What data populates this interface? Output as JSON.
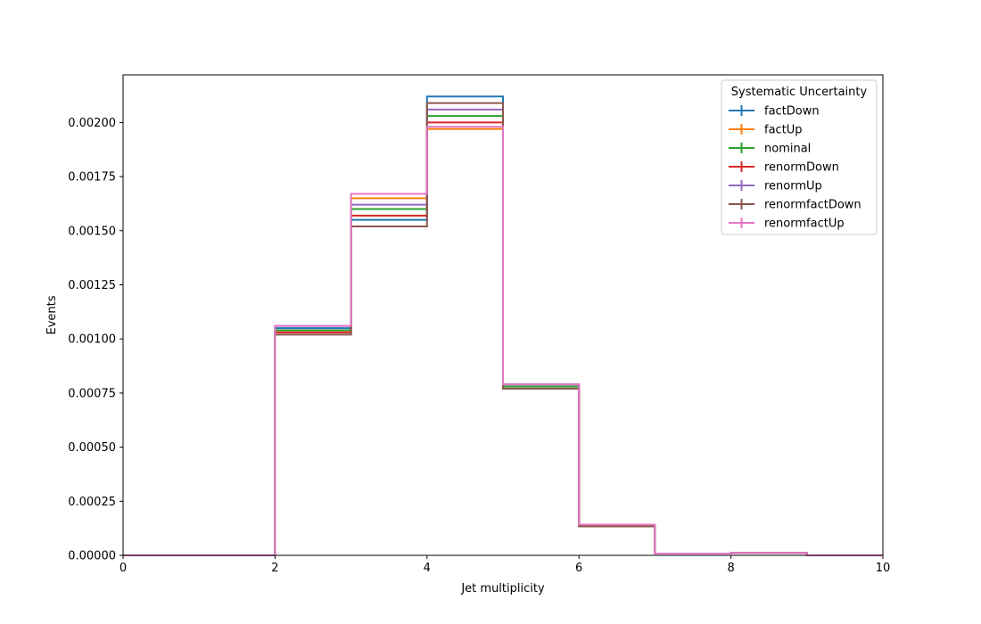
{
  "chart_data": {
    "type": "line",
    "subtype": "step-histogram",
    "xlabel": "Jet multiplicity",
    "ylabel": "Events",
    "xlim": [
      0,
      10
    ],
    "ylim": [
      0,
      0.00222
    ],
    "x_ticks": [
      0,
      2,
      4,
      6,
      8,
      10
    ],
    "y_ticks": [
      0,
      0.00025,
      0.0005,
      0.00075,
      0.001,
      0.00125,
      0.0015,
      0.00175,
      0.002
    ],
    "x_tick_labels": [
      "0",
      "2",
      "4",
      "6",
      "8",
      "10"
    ],
    "y_tick_labels": [
      "0.00000",
      "0.00025",
      "0.00050",
      "0.00075",
      "0.00100",
      "0.00125",
      "0.00150",
      "0.00175",
      "0.00200"
    ],
    "bin_edges": [
      0,
      1,
      2,
      3,
      4,
      5,
      6,
      7,
      8,
      9,
      10
    ],
    "legend": {
      "title": "Systematic Uncertainty",
      "placement": "top-right"
    },
    "series": [
      {
        "name": "factDown",
        "color": "#1f77b4",
        "values": [
          0,
          0,
          0.00105,
          0.00155,
          0.00212,
          0.00079,
          0.000138,
          8e-06,
          1.2e-05,
          0
        ]
      },
      {
        "name": "factUp",
        "color": "#ff7f0e",
        "values": [
          0,
          0,
          0.00103,
          0.00165,
          0.00197,
          0.00077,
          0.000135,
          8e-06,
          1.2e-05,
          0
        ]
      },
      {
        "name": "nominal",
        "color": "#2ca02c",
        "values": [
          0,
          0,
          0.00104,
          0.0016,
          0.00203,
          0.00078,
          0.000137,
          8e-06,
          1.2e-05,
          0
        ]
      },
      {
        "name": "renormDown",
        "color": "#d62728",
        "values": [
          0,
          0,
          0.00103,
          0.00157,
          0.002,
          0.00077,
          0.000136,
          8e-06,
          1.2e-05,
          0
        ]
      },
      {
        "name": "renormUp",
        "color": "#9467bd",
        "values": [
          0,
          0,
          0.00106,
          0.00162,
          0.00206,
          0.00079,
          0.00014,
          8e-06,
          1.2e-05,
          0
        ]
      },
      {
        "name": "renormfactDown",
        "color": "#8c564b",
        "values": [
          0,
          0,
          0.00102,
          0.00152,
          0.00209,
          0.00077,
          0.000134,
          8e-06,
          1.2e-05,
          0
        ]
      },
      {
        "name": "renormfactUp",
        "color": "#e377c2",
        "values": [
          0,
          0,
          0.00106,
          0.00167,
          0.00198,
          0.00079,
          0.000142,
          8e-06,
          1.2e-05,
          0
        ]
      }
    ]
  }
}
